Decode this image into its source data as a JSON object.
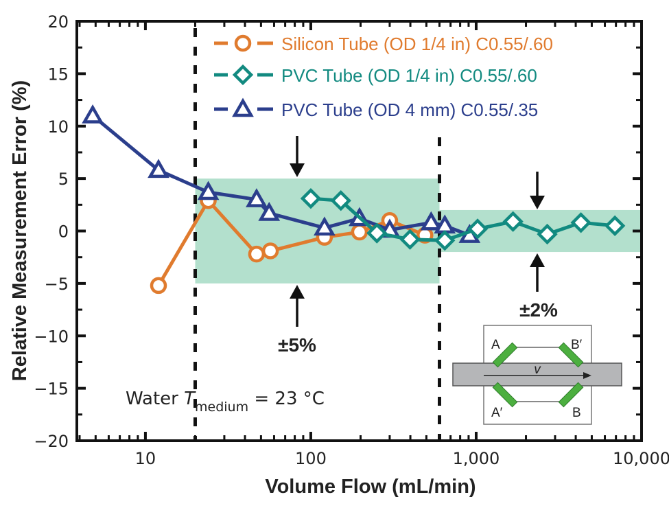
{
  "chart_data": {
    "type": "line",
    "title": "",
    "xlabel": "Volume Flow (mL/min)",
    "ylabel": "Relative Measurement Error (%)",
    "xscale": "log",
    "xlim": [
      3.85,
      10000
    ],
    "ylim": [
      -20,
      20
    ],
    "x_ticks": [
      10,
      100,
      1000,
      10000
    ],
    "x_tick_labels": [
      "10",
      "100",
      "1,000",
      "10,000"
    ],
    "y_ticks": [
      -20,
      -15,
      -10,
      -5,
      0,
      5,
      10,
      15,
      20
    ],
    "y_tick_labels": [
      "−20",
      "−15",
      "−10",
      "−5",
      "0",
      "5",
      "10",
      "15",
      "20"
    ],
    "grid": false,
    "legend_position": "top",
    "series": [
      {
        "name": "Silicon Tube (OD 1/4 in) C0.55/.60",
        "marker": "circle",
        "color": "#e07b2e",
        "x": [
          12,
          24,
          47,
          57,
          121,
          197,
          300,
          490
        ],
        "y": [
          -5.2,
          2.9,
          -2.2,
          -1.9,
          -0.6,
          -0.1,
          1.0,
          -0.4
        ]
      },
      {
        "name": "PVC Tube (OD 1/4 in) C0.55/.60",
        "marker": "diamond",
        "color": "#128a80",
        "x": [
          100,
          152,
          251,
          398,
          646,
          1020,
          1670,
          2690,
          4300,
          6900
        ],
        "y": [
          3.1,
          2.9,
          -0.2,
          -0.8,
          -0.9,
          0.2,
          0.9,
          -0.3,
          0.8,
          0.5
        ]
      },
      {
        "name": "PVC Tube (OD 4 mm) C0.55/.35",
        "marker": "triangle",
        "color": "#2b3e8c",
        "x": [
          4.8,
          12,
          24,
          47,
          56,
          121,
          197,
          300,
          534,
          646,
          912
        ],
        "y": [
          11.0,
          5.8,
          3.7,
          3.0,
          1.7,
          0.3,
          1.2,
          0.1,
          0.8,
          0.5,
          -0.4
        ]
      }
    ],
    "regions": [
      {
        "x_from": 20,
        "x_to": 600,
        "y_from": -5,
        "y_to": 5,
        "label": "±5%",
        "color": "#b3e0cd"
      },
      {
        "x_from": 600,
        "x_to": 10000,
        "y_from": -2,
        "y_to": 2,
        "label": "±2%",
        "color": "#b3e0cd"
      }
    ],
    "vertical_lines": [
      20,
      600
    ],
    "annotations": {
      "medium_prefix": "Water ",
      "medium_symbol": "T",
      "medium_subscript": "medium",
      "medium_suffix": " = 23 °C"
    },
    "inset": {
      "labels": [
        "A",
        "B′",
        "A′",
        "B"
      ],
      "velocity_label": "v"
    }
  }
}
